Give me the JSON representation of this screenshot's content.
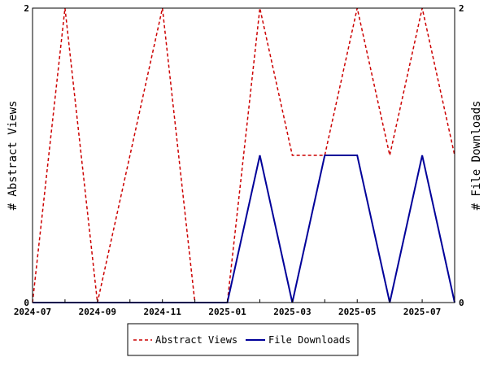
{
  "chart_data": {
    "type": "line",
    "x": [
      "2024-07",
      "2024-08",
      "2024-09",
      "2024-10",
      "2024-11",
      "2024-12",
      "2025-01",
      "2025-02",
      "2025-03",
      "2025-04",
      "2025-05",
      "2025-06",
      "2025-07",
      "2025-08"
    ],
    "x_tick_labels": [
      "2024-07",
      "2024-09",
      "2024-11",
      "2025-01",
      "2025-03",
      "2025-05",
      "2025-07"
    ],
    "series": [
      {
        "name": "Abstract Views",
        "values": [
          0,
          2,
          0,
          1,
          2,
          0,
          0,
          2,
          1,
          1,
          2,
          1,
          2,
          1
        ],
        "color": "#cc0000",
        "style": "dashed",
        "axis": "left"
      },
      {
        "name": "File Downloads",
        "values": [
          0,
          0,
          0,
          0,
          0,
          0,
          0,
          1,
          0,
          1,
          1,
          0,
          1,
          0
        ],
        "color": "#000099",
        "style": "solid",
        "axis": "right"
      }
    ],
    "ylabel": "# Abstract Views",
    "y2label": "# File Downloads",
    "ylim": [
      0,
      2
    ],
    "y2lim": [
      0,
      2
    ],
    "y_ticks": [
      "0",
      "2"
    ],
    "y2_ticks": [
      "0",
      "2"
    ],
    "grid": false,
    "legend_position": "bottom"
  }
}
